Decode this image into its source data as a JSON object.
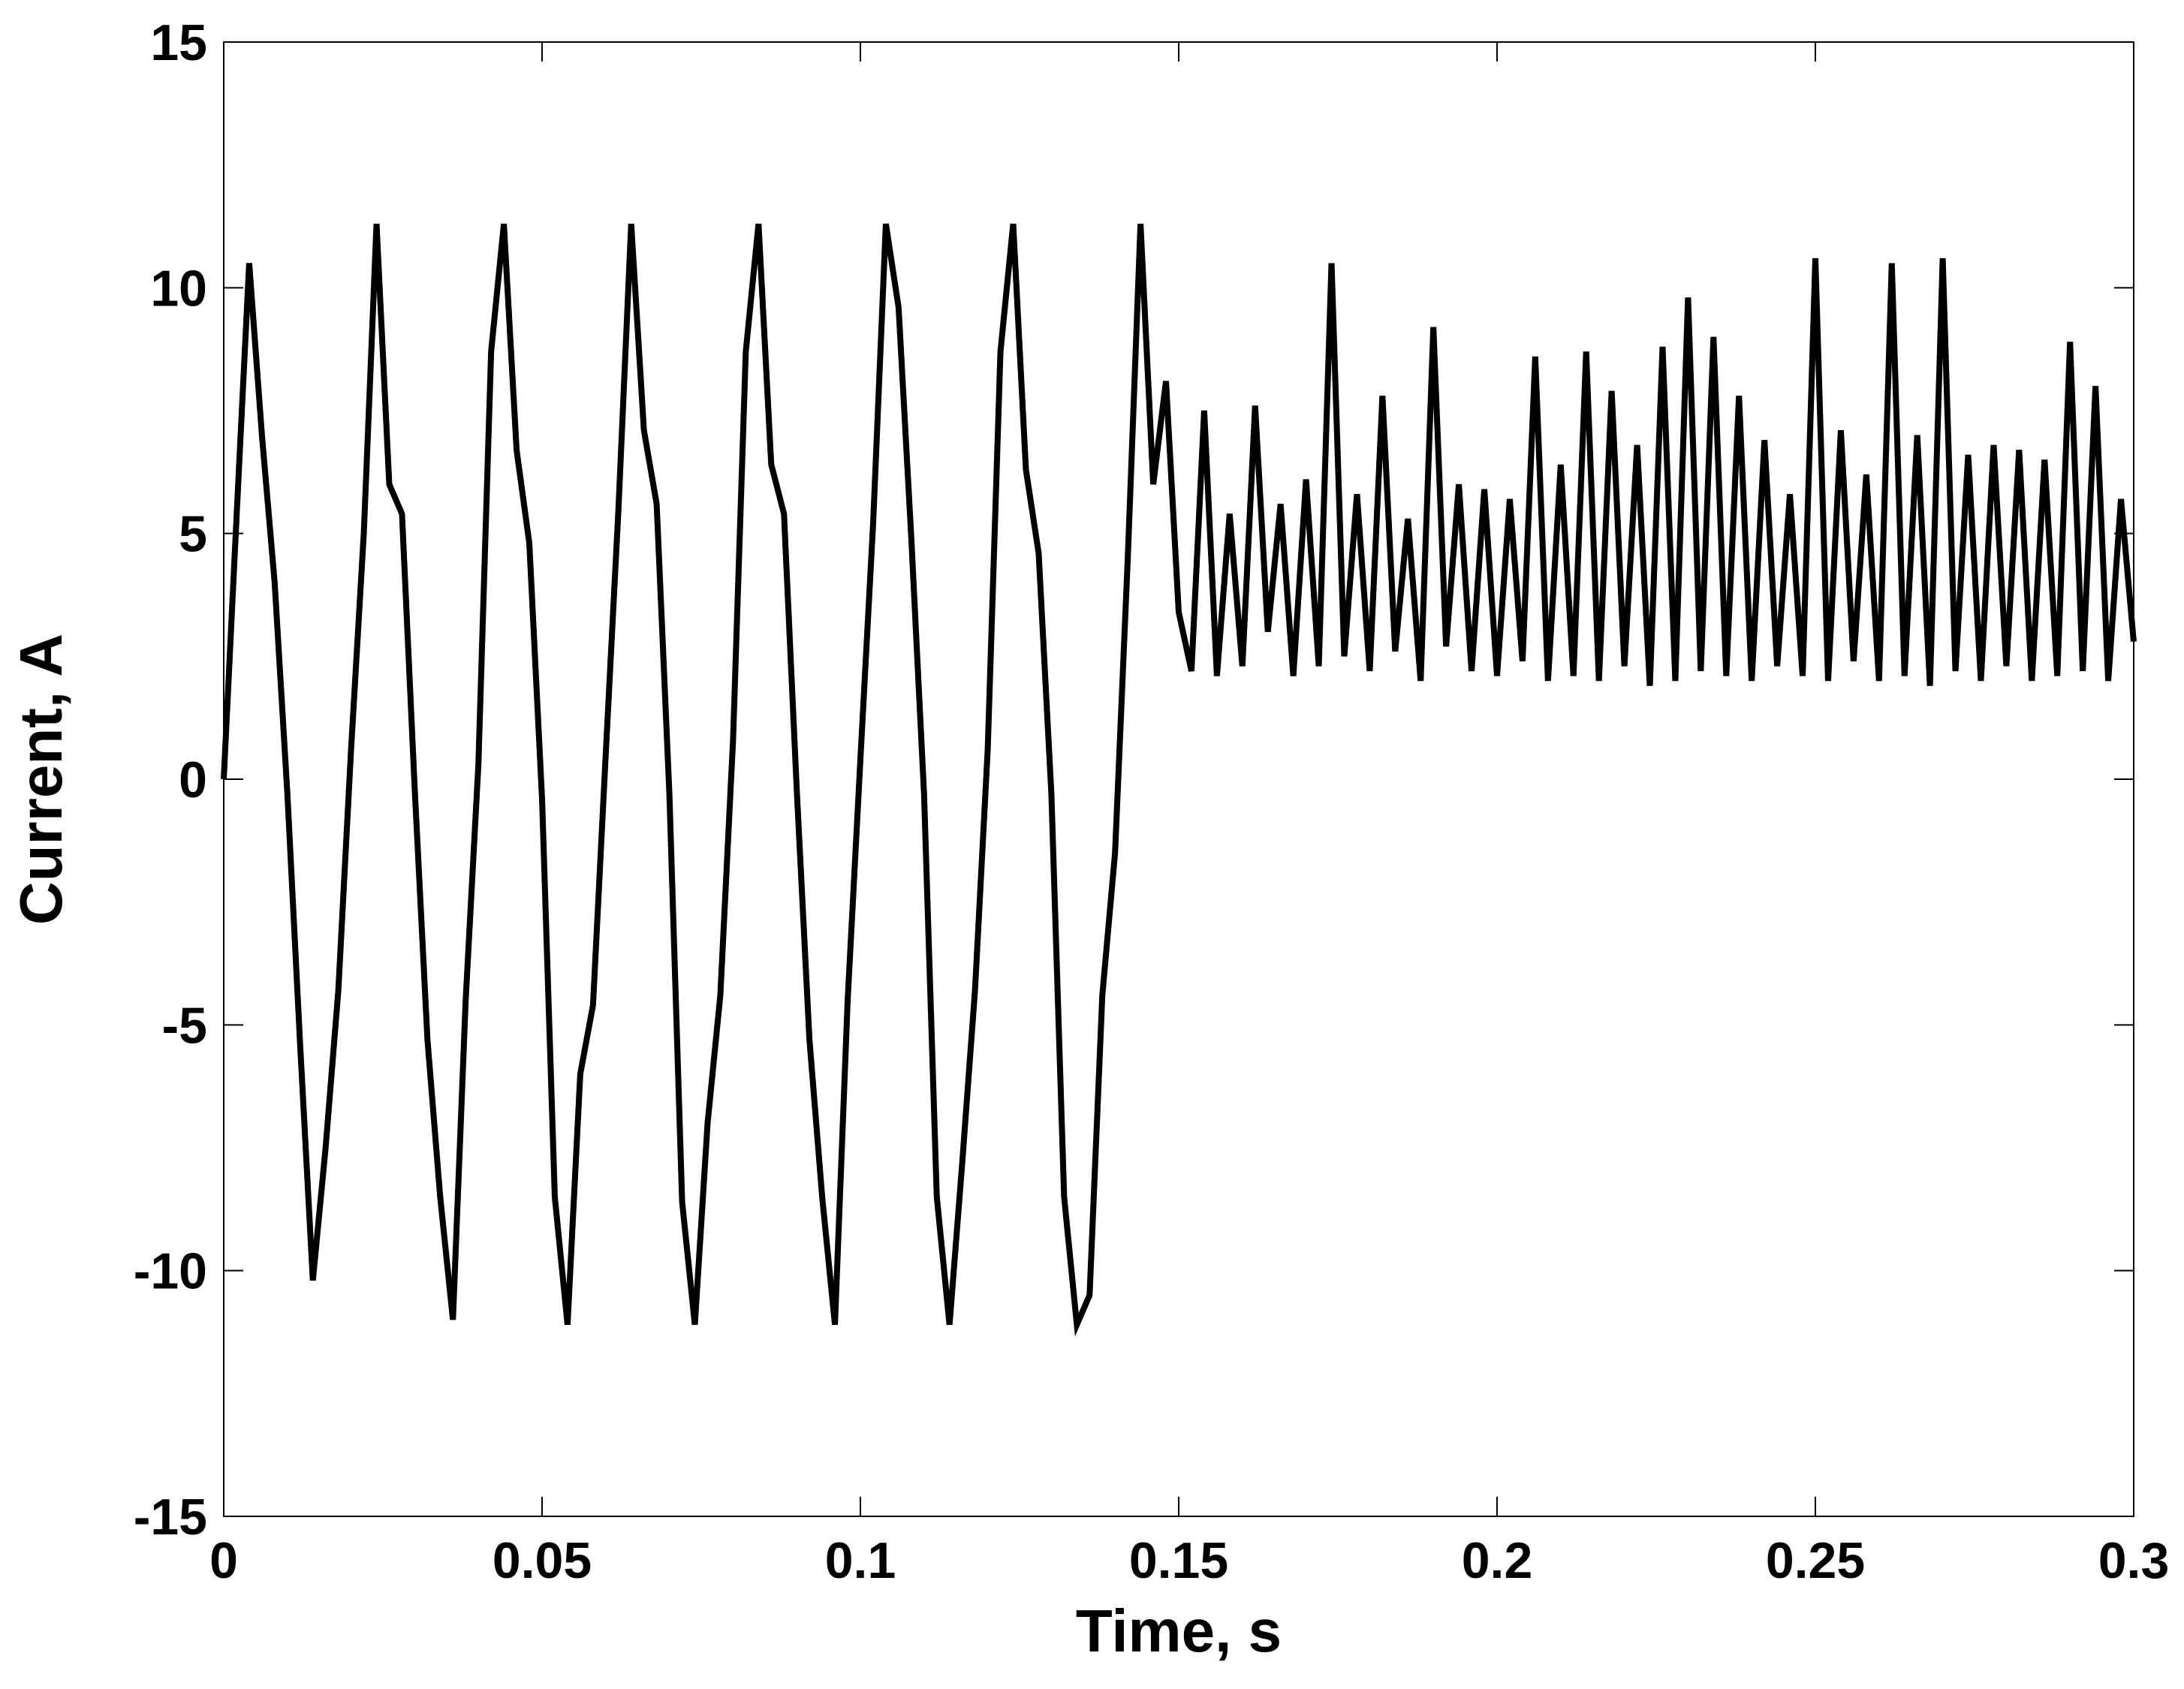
{
  "chart_data": {
    "type": "line",
    "xlabel": "Time, s",
    "ylabel": "Current, A",
    "color": "#000000",
    "grid": false,
    "xlim": [
      0,
      0.3
    ],
    "ylim": [
      -15,
      15
    ],
    "xticks": [
      0,
      0.05,
      0.1,
      0.15,
      0.2,
      0.25,
      0.3
    ],
    "yticks": [
      -15,
      -10,
      -5,
      0,
      5,
      10,
      15
    ],
    "x": [
      0,
      0.002,
      0.004,
      0.006,
      0.008,
      0.01,
      0.012,
      0.014,
      0.016,
      0.018,
      0.02,
      0.022,
      0.024,
      0.026,
      0.028,
      0.03,
      0.032,
      0.034,
      0.036,
      0.038,
      0.04,
      0.042,
      0.044,
      0.046,
      0.048,
      0.05,
      0.052,
      0.054,
      0.056,
      0.058,
      0.06,
      0.062,
      0.064,
      0.066,
      0.068,
      0.07,
      0.072,
      0.074,
      0.076,
      0.078,
      0.08,
      0.082,
      0.084,
      0.086,
      0.088,
      0.09,
      0.092,
      0.094,
      0.096,
      0.098,
      0.1,
      0.102,
      0.104,
      0.106,
      0.108,
      0.11,
      0.112,
      0.114,
      0.116,
      0.118,
      0.12,
      0.122,
      0.124,
      0.126,
      0.128,
      0.13,
      0.132,
      0.134,
      0.136,
      0.138,
      0.14,
      0.142,
      0.144,
      0.146,
      0.148,
      0.15,
      0.152,
      0.154,
      0.156,
      0.158,
      0.16,
      0.162,
      0.164,
      0.166,
      0.168,
      0.17,
      0.172,
      0.174,
      0.176,
      0.178,
      0.18,
      0.182,
      0.184,
      0.186,
      0.188,
      0.19,
      0.192,
      0.194,
      0.196,
      0.198,
      0.2,
      0.202,
      0.204,
      0.206,
      0.208,
      0.21,
      0.212,
      0.214,
      0.216,
      0.218,
      0.22,
      0.222,
      0.224,
      0.226,
      0.228,
      0.23,
      0.232,
      0.234,
      0.236,
      0.238,
      0.24,
      0.242,
      0.244,
      0.246,
      0.248,
      0.25,
      0.252,
      0.254,
      0.256,
      0.258,
      0.26,
      0.262,
      0.264,
      0.266,
      0.268,
      0.27,
      0.272,
      0.274,
      0.276,
      0.278,
      0.28,
      0.282,
      0.284,
      0.286,
      0.288,
      0.29,
      0.292,
      0.294,
      0.296,
      0.298,
      0.3
    ],
    "values": [
      0,
      5.3,
      10.5,
      7.0,
      4.0,
      -0.3,
      -5.4,
      -10.2,
      -7.5,
      -4.3,
      0.6,
      5.0,
      11.3,
      6.0,
      5.4,
      -0.2,
      -5.3,
      -8.5,
      -11.0,
      -4.5,
      0.3,
      8.7,
      11.3,
      6.7,
      4.8,
      -0.4,
      -8.5,
      -11.1,
      -6.0,
      -4.6,
      0.5,
      5.5,
      11.3,
      7.1,
      5.6,
      -0.3,
      -8.6,
      -11.1,
      -7.0,
      -4.4,
      0.8,
      8.7,
      11.3,
      6.4,
      5.4,
      -0.2,
      -5.3,
      -8.5,
      -11.1,
      -4.5,
      0.4,
      5.2,
      11.3,
      9.6,
      4.9,
      -0.3,
      -8.5,
      -11.1,
      -7.8,
      -4.3,
      0.6,
      8.7,
      11.3,
      6.3,
      4.6,
      -0.3,
      -8.5,
      -11.1,
      -10.5,
      -4.4,
      -1.5,
      4.5,
      11.3,
      6.0,
      8.1,
      3.4,
      2.2,
      7.5,
      2.1,
      5.4,
      2.3,
      7.6,
      3.0,
      5.6,
      2.1,
      6.1,
      2.3,
      10.5,
      2.5,
      5.8,
      2.2,
      7.8,
      2.6,
      5.3,
      2.0,
      9.2,
      2.7,
      6.0,
      2.2,
      5.9,
      2.1,
      5.7,
      2.4,
      8.6,
      2.0,
      6.4,
      2.1,
      8.7,
      2.0,
      7.9,
      2.3,
      6.8,
      1.9,
      8.8,
      2.0,
      9.8,
      2.2,
      9.0,
      2.1,
      7.8,
      2.0,
      6.9,
      2.3,
      5.8,
      2.1,
      10.6,
      2.0,
      7.1,
      2.4,
      6.2,
      2.0,
      10.5,
      2.1,
      7.0,
      1.9,
      10.6,
      2.2,
      6.6,
      2.0,
      6.8,
      2.3,
      6.7,
      2.0,
      6.5,
      2.1,
      8.9,
      2.2,
      8.0,
      2.0,
      5.7,
      2.8
    ]
  }
}
